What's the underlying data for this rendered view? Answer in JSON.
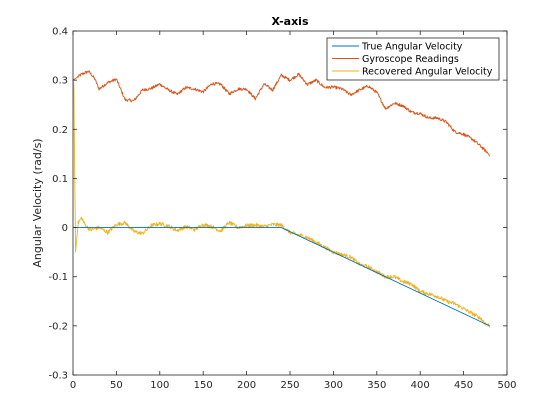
{
  "chart_data": {
    "type": "line",
    "title": "X-axis",
    "xlabel": "",
    "ylabel": "Angular Velocity (rad/s)",
    "xlim": [
      0,
      500
    ],
    "ylim": [
      -0.3,
      0.4
    ],
    "xticks": [
      0,
      50,
      100,
      150,
      200,
      250,
      300,
      350,
      400,
      450,
      500
    ],
    "yticks": [
      -0.3,
      -0.2,
      -0.1,
      0,
      0.1,
      0.2,
      0.3,
      0.4
    ],
    "xtick_labels": [
      "0",
      "50",
      "100",
      "150",
      "200",
      "250",
      "300",
      "350",
      "400",
      "450",
      "500"
    ],
    "ytick_labels": [
      "-0.3",
      "-0.2",
      "-0.1",
      "0",
      "0.1",
      "0.2",
      "0.3",
      "0.4"
    ],
    "grid": false,
    "legend_position": "top-right",
    "series": [
      {
        "name": "True Angular Velocity",
        "color": "#0072BD",
        "x": [
          0,
          240,
          480
        ],
        "y": [
          0,
          0,
          -0.2
        ]
      },
      {
        "name": "Gyroscope Readings",
        "color": "#D95319",
        "x": [
          0,
          10,
          18,
          25,
          30,
          40,
          50,
          60,
          70,
          80,
          90,
          100,
          110,
          120,
          130,
          140,
          150,
          160,
          170,
          180,
          190,
          200,
          210,
          220,
          230,
          240,
          250,
          260,
          270,
          280,
          290,
          300,
          310,
          320,
          330,
          340,
          350,
          360,
          370,
          380,
          390,
          400,
          410,
          420,
          430,
          440,
          450,
          460,
          470,
          480
        ],
        "y": [
          0.3,
          0.312,
          0.318,
          0.303,
          0.282,
          0.295,
          0.302,
          0.26,
          0.258,
          0.28,
          0.283,
          0.292,
          0.28,
          0.271,
          0.285,
          0.282,
          0.276,
          0.293,
          0.292,
          0.272,
          0.282,
          0.282,
          0.262,
          0.292,
          0.28,
          0.31,
          0.3,
          0.312,
          0.291,
          0.3,
          0.285,
          0.286,
          0.282,
          0.27,
          0.28,
          0.288,
          0.275,
          0.242,
          0.253,
          0.248,
          0.235,
          0.232,
          0.223,
          0.223,
          0.215,
          0.195,
          0.19,
          0.18,
          0.165,
          0.148
        ]
      },
      {
        "name": "Recovered Angular Velocity",
        "color": "#EDB120",
        "x": [
          0,
          1,
          2,
          3,
          4,
          6,
          10,
          14,
          20,
          30,
          40,
          50,
          60,
          70,
          80,
          90,
          100,
          110,
          120,
          130,
          140,
          150,
          160,
          170,
          180,
          190,
          200,
          210,
          220,
          230,
          240,
          250,
          260,
          270,
          280,
          290,
          300,
          310,
          320,
          330,
          340,
          350,
          360,
          370,
          380,
          390,
          400,
          410,
          420,
          430,
          440,
          450,
          460,
          470,
          475,
          480
        ],
        "y": [
          0.3,
          0.29,
          0.1,
          -0.05,
          -0.03,
          0.01,
          0.02,
          0.005,
          -0.005,
          0.0,
          -0.01,
          0.006,
          0.01,
          -0.008,
          -0.012,
          0.004,
          0.008,
          0.003,
          -0.006,
          0.002,
          -0.004,
          0.006,
          0.002,
          -0.007,
          0.01,
          0.0,
          0.004,
          0.005,
          0.002,
          0.006,
          0.005,
          -0.01,
          -0.015,
          -0.02,
          -0.03,
          -0.04,
          -0.05,
          -0.055,
          -0.06,
          -0.075,
          -0.08,
          -0.09,
          -0.1,
          -0.1,
          -0.11,
          -0.115,
          -0.13,
          -0.135,
          -0.14,
          -0.15,
          -0.155,
          -0.165,
          -0.175,
          -0.185,
          -0.195,
          -0.2
        ]
      }
    ]
  }
}
